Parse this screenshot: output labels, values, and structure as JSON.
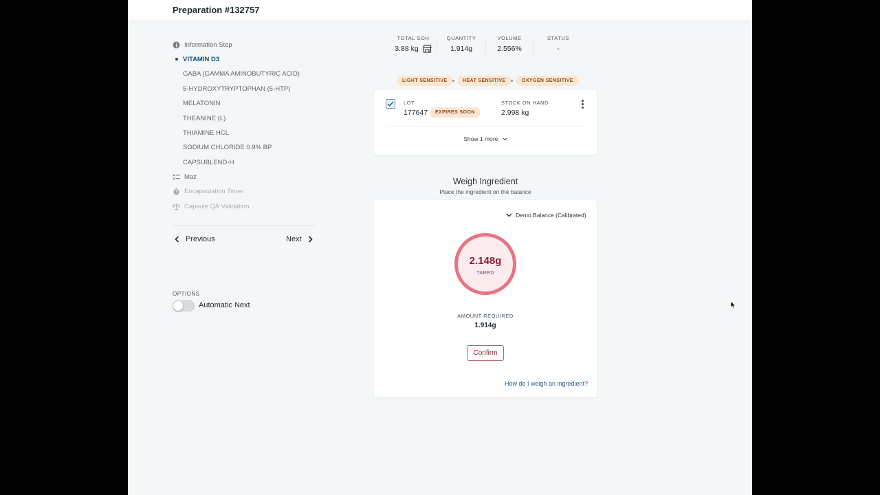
{
  "header": {
    "title": "Preparation #132757"
  },
  "sidebar": {
    "steps": [
      {
        "label": "Information Step",
        "icon": "info-icon",
        "state": "done"
      },
      {
        "label": "VITAMIN D3",
        "state": "active"
      },
      {
        "label": "GABA (GAMMA AMINOBUTYRIC ACID)",
        "state": "pending"
      },
      {
        "label": "5-HYDROXYTRYPTOPHAN (5-HTP)",
        "state": "pending"
      },
      {
        "label": "MELATONIN",
        "state": "pending"
      },
      {
        "label": "THEANINE (L)",
        "state": "pending"
      },
      {
        "label": "THIAMINE HCL",
        "state": "pending"
      },
      {
        "label": "SODIUM CHLORIDE 0.9% BP",
        "state": "pending"
      },
      {
        "label": "CAPSUBLEND-H",
        "state": "pending"
      },
      {
        "label": "Maz",
        "icon": "checklist-icon",
        "state": "pending"
      },
      {
        "label": "Encapsulation Timer",
        "icon": "stopwatch-icon",
        "state": "disabled"
      },
      {
        "label": "Capsule QA Validation",
        "icon": "scale-icon",
        "state": "disabled"
      }
    ],
    "previous_label": "Previous",
    "next_label": "Next",
    "options_label": "OPTIONS",
    "automatic_next_label": "Automatic Next",
    "automatic_next_on": false
  },
  "stats": {
    "total_soh_label": "TOTAL SOH",
    "total_soh_value": "3.88 kg",
    "quantity_label": "QUANTITY",
    "quantity_value": "1.914g",
    "volume_label": "VOLUME",
    "volume_value": "2.556%",
    "status_label": "STATUS",
    "status_value": "-"
  },
  "badges": [
    "LIGHT SENSITIVE",
    "HEAT SENSITIVE",
    "OXYGEN SENSITIVE"
  ],
  "lot": {
    "lot_label": "LOT",
    "lot_value": "177647",
    "expires_badge": "EXPIRES SOON",
    "soh_label": "STOCK ON HAND",
    "soh_value": "2.998 kg",
    "show_more": "Show 1 more",
    "checked": true
  },
  "weigh": {
    "title": "Weigh Ingredient",
    "subtitle": "Place the ingredient on the balance",
    "balance": "Demo Balance (Calibrated)",
    "reading": "2.148g",
    "reading_state": "TARED",
    "amount_required_label": "AMOUNT REQUIRED",
    "amount_required_value": "1.914g",
    "confirm_label": "Confirm",
    "help_link": "How do I weigh an ingredient?"
  },
  "colors": {
    "accent": "#1b4f72",
    "warning_bg": "#fbe6d2",
    "warning_text": "#8a4a15",
    "reading_ring": "#e57583",
    "reading_text": "#8a1f33"
  }
}
